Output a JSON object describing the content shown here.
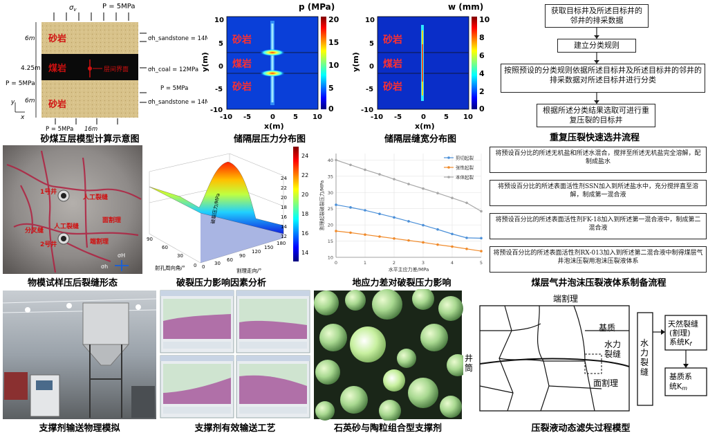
{
  "model": {
    "sigma_v": "σ",
    "sigma_v_sub": "v",
    "top_pressure": "P = 5MPa",
    "left_pressure": "P = 5MPa",
    "bottom_pressure": "P = 5MPa",
    "right_pressure": "P = 5MPa",
    "width_label": "16m",
    "thick_top": "6m",
    "thick_mid": "4.25m",
    "thick_bot": "6m",
    "layer_top": "砂岩",
    "layer_mid": "煤岩",
    "layer_bot": "砂岩",
    "interface": "层间界面",
    "sh_sand_top": "σh_sandstone = 14M",
    "sh_coal": "σh_coal = 12MPa",
    "sh_sand_bot": "σh_sandstone = 14M",
    "axis_y": "y",
    "axis_x": "x",
    "caption": "砂煤互层模型计算示意图"
  },
  "pressure_map": {
    "title": "p (MPa)",
    "xlabel": "x(m)",
    "ylabel": "y(m)",
    "xticks": [
      "-10",
      "-5",
      "0",
      "5",
      "10"
    ],
    "yticks": [
      "10",
      "5",
      "0",
      "-5",
      "-10"
    ],
    "cticks": [
      "20",
      "15",
      "10",
      "5",
      "0"
    ],
    "layer_top": "砂岩",
    "layer_mid": "煤岩",
    "layer_bot": "砂岩",
    "caption": "储隔层压力分布图"
  },
  "width_map": {
    "title": "w (mm)",
    "xlabel": "x(m)",
    "ylabel": "y(m)",
    "xticks": [
      "-10",
      "-5",
      "0",
      "5",
      "10"
    ],
    "yticks": [
      "10",
      "5",
      "0",
      "-5",
      "-10"
    ],
    "cticks": [
      "10",
      "8",
      "6",
      "4",
      "2",
      "0"
    ],
    "layer_top": "砂岩",
    "layer_mid": "煤岩",
    "layer_bot": "砂岩",
    "caption": "储隔层缝宽分布图"
  },
  "flow1": {
    "steps": [
      "获取目标井及所述目标井的邻井的排采数据",
      "建立分类规则",
      "按照预设的分类规则依据所述目标井及所述目标井的邻井的排采数据对所述目标井进行分类",
      "根据所述分类结果选取可进行重复压裂的目标井"
    ],
    "caption": "重复压裂快速选井流程"
  },
  "specimen": {
    "well1": "1号井",
    "well2": "2号井",
    "frac1": "人工裂缝",
    "frac2": "人工裂缝",
    "face_cleat": "面割理",
    "branch": "分叉缝",
    "butt_cleat": "端割理",
    "s_h": "σH",
    "s_min": "σh",
    "caption": "物模试样压后裂缝形态"
  },
  "surface3d": {
    "cticks": [
      "24",
      "22",
      "20",
      "18",
      "16",
      "14"
    ],
    "zlabel": "破裂压力/MPa",
    "xlabel": "射孔周向角/°",
    "ylabel": "割理走向/°",
    "xticks": [
      "90",
      "60",
      "30",
      "0"
    ],
    "yticks": [
      "0",
      "30",
      "60",
      "90",
      "120",
      "150",
      "180"
    ],
    "zticks": [
      "24",
      "22",
      "20",
      "18",
      "16",
      "14",
      "12"
    ],
    "caption": "破裂压力影响因素分析"
  },
  "chart_data": {
    "type": "line",
    "title": "",
    "xlabel": "水平主应力差/MPa",
    "ylabel": "割理起裂破裂压力/MPa",
    "x": [
      0,
      0.5,
      1,
      1.5,
      2,
      2.5,
      3,
      3.5,
      4,
      4.5,
      5
    ],
    "xticks": [
      "0",
      "1",
      "2",
      "3",
      "4",
      "5"
    ],
    "yticks": [
      "10",
      "15",
      "20",
      "25",
      "30",
      "35",
      "40"
    ],
    "xlim": [
      0,
      5
    ],
    "ylim": [
      10,
      42
    ],
    "legend_position": "top-right",
    "grid": true,
    "series": [
      {
        "name": "剪切起裂",
        "color": "#4a8fd8",
        "values": [
          26.2,
          25.4,
          24.5,
          23.4,
          22.3,
          21.1,
          19.9,
          18.6,
          17.2,
          16.0,
          15.9
        ]
      },
      {
        "name": "张性起裂",
        "color": "#f08a2a",
        "values": [
          18.1,
          17.6,
          17.0,
          16.4,
          15.8,
          15.2,
          14.6,
          13.9,
          13.3,
          12.6,
          11.9
        ]
      },
      {
        "name": "本体起裂",
        "color": "#a8a8a8",
        "values": [
          40.0,
          38.5,
          37.0,
          35.6,
          34.1,
          32.6,
          31.2,
          29.8,
          28.3,
          26.8,
          24.2
        ]
      }
    ],
    "caption": "地应力差对破裂压力影响"
  },
  "flow2": {
    "steps": [
      "将预设百分比的所述无机盐和所述水混合，搅拌至所述无机盐完全溶解，配制成盐水",
      "将预设百分比的所述表面活性剂SSN加入到所述盐水中，充分搅拌直至溶解，制成第一混合液",
      "将预设百分比的所述表面活性剂FK-18加入到所述第一混合液中，制成第二混合液",
      "将预设百分比的所述表面活性剂RX-013加入到所述第二混合液中制得煤层气井泡沫压裂用泡沫压裂液体系"
    ],
    "caption": "煤层气井泡沫压裂液体系制备流程"
  },
  "photos": {
    "transport_caption": "支撑剂输送物理模拟",
    "tuning_caption": "支撑剂有效输送工艺",
    "proppant_caption": "石英砂与陶粒组合型支撑剂"
  },
  "leakoff": {
    "butt_cleat": "端割理",
    "matrix": "基质",
    "hydro_frac": "水力裂缝",
    "wellbore": "井筒",
    "face_cleat": "面割理",
    "hydro_frac_v": "水力裂缝",
    "natural_sys": "天然裂缝(割理)系统K",
    "natural_sub": "f",
    "matrix_sys": "基质系统K",
    "matrix_sub": "m",
    "caption": "压裂液动态滤失过程模型"
  }
}
